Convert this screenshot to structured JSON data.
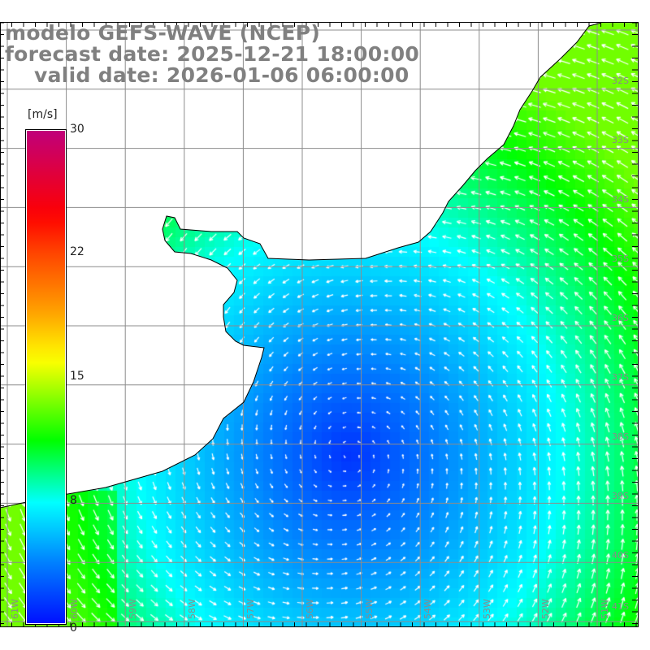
{
  "title": {
    "model": "modelo GEFS-WAVE (NCEP)",
    "forecast": "forecast date: 2025-12-21 18:00:00",
    "valid": "    valid date: 2026-01-06 06:00:00"
  },
  "colorbar": {
    "unit": "[m/s]",
    "ticks": [
      {
        "label": "30",
        "value": 30
      },
      {
        "label": "22",
        "value": 22
      },
      {
        "label": "15",
        "value": 15
      },
      {
        "label": "8",
        "value": 8
      },
      {
        "label": "0",
        "value": 0
      }
    ],
    "stops": [
      {
        "value": 0,
        "color": "#0010ff"
      },
      {
        "value": 4,
        "color": "#0080ff"
      },
      {
        "value": 8,
        "color": "#00ffff"
      },
      {
        "value": 11.5,
        "color": "#00ff00"
      },
      {
        "value": 16,
        "color": "#ffff00"
      },
      {
        "value": 19,
        "color": "#ff9900"
      },
      {
        "value": 24.5,
        "color": "#ff0000"
      },
      {
        "value": 30,
        "color": "#c0007a"
      }
    ]
  },
  "axes": {
    "lat_labels": [
      "32S",
      "33S",
      "34S",
      "35S",
      "36S",
      "37S",
      "38S",
      "39S",
      "40S",
      "41S"
    ],
    "lon_labels": [
      "61W",
      "60W",
      "59W",
      "58W",
      "57W",
      "56W",
      "55W",
      "54W",
      "53W",
      "52W",
      "51W"
    ]
  },
  "colors": {
    "land": "#ffffff",
    "grid": "#8c8c8c",
    "coast": "#000000",
    "arrow": "#ffffff"
  }
}
